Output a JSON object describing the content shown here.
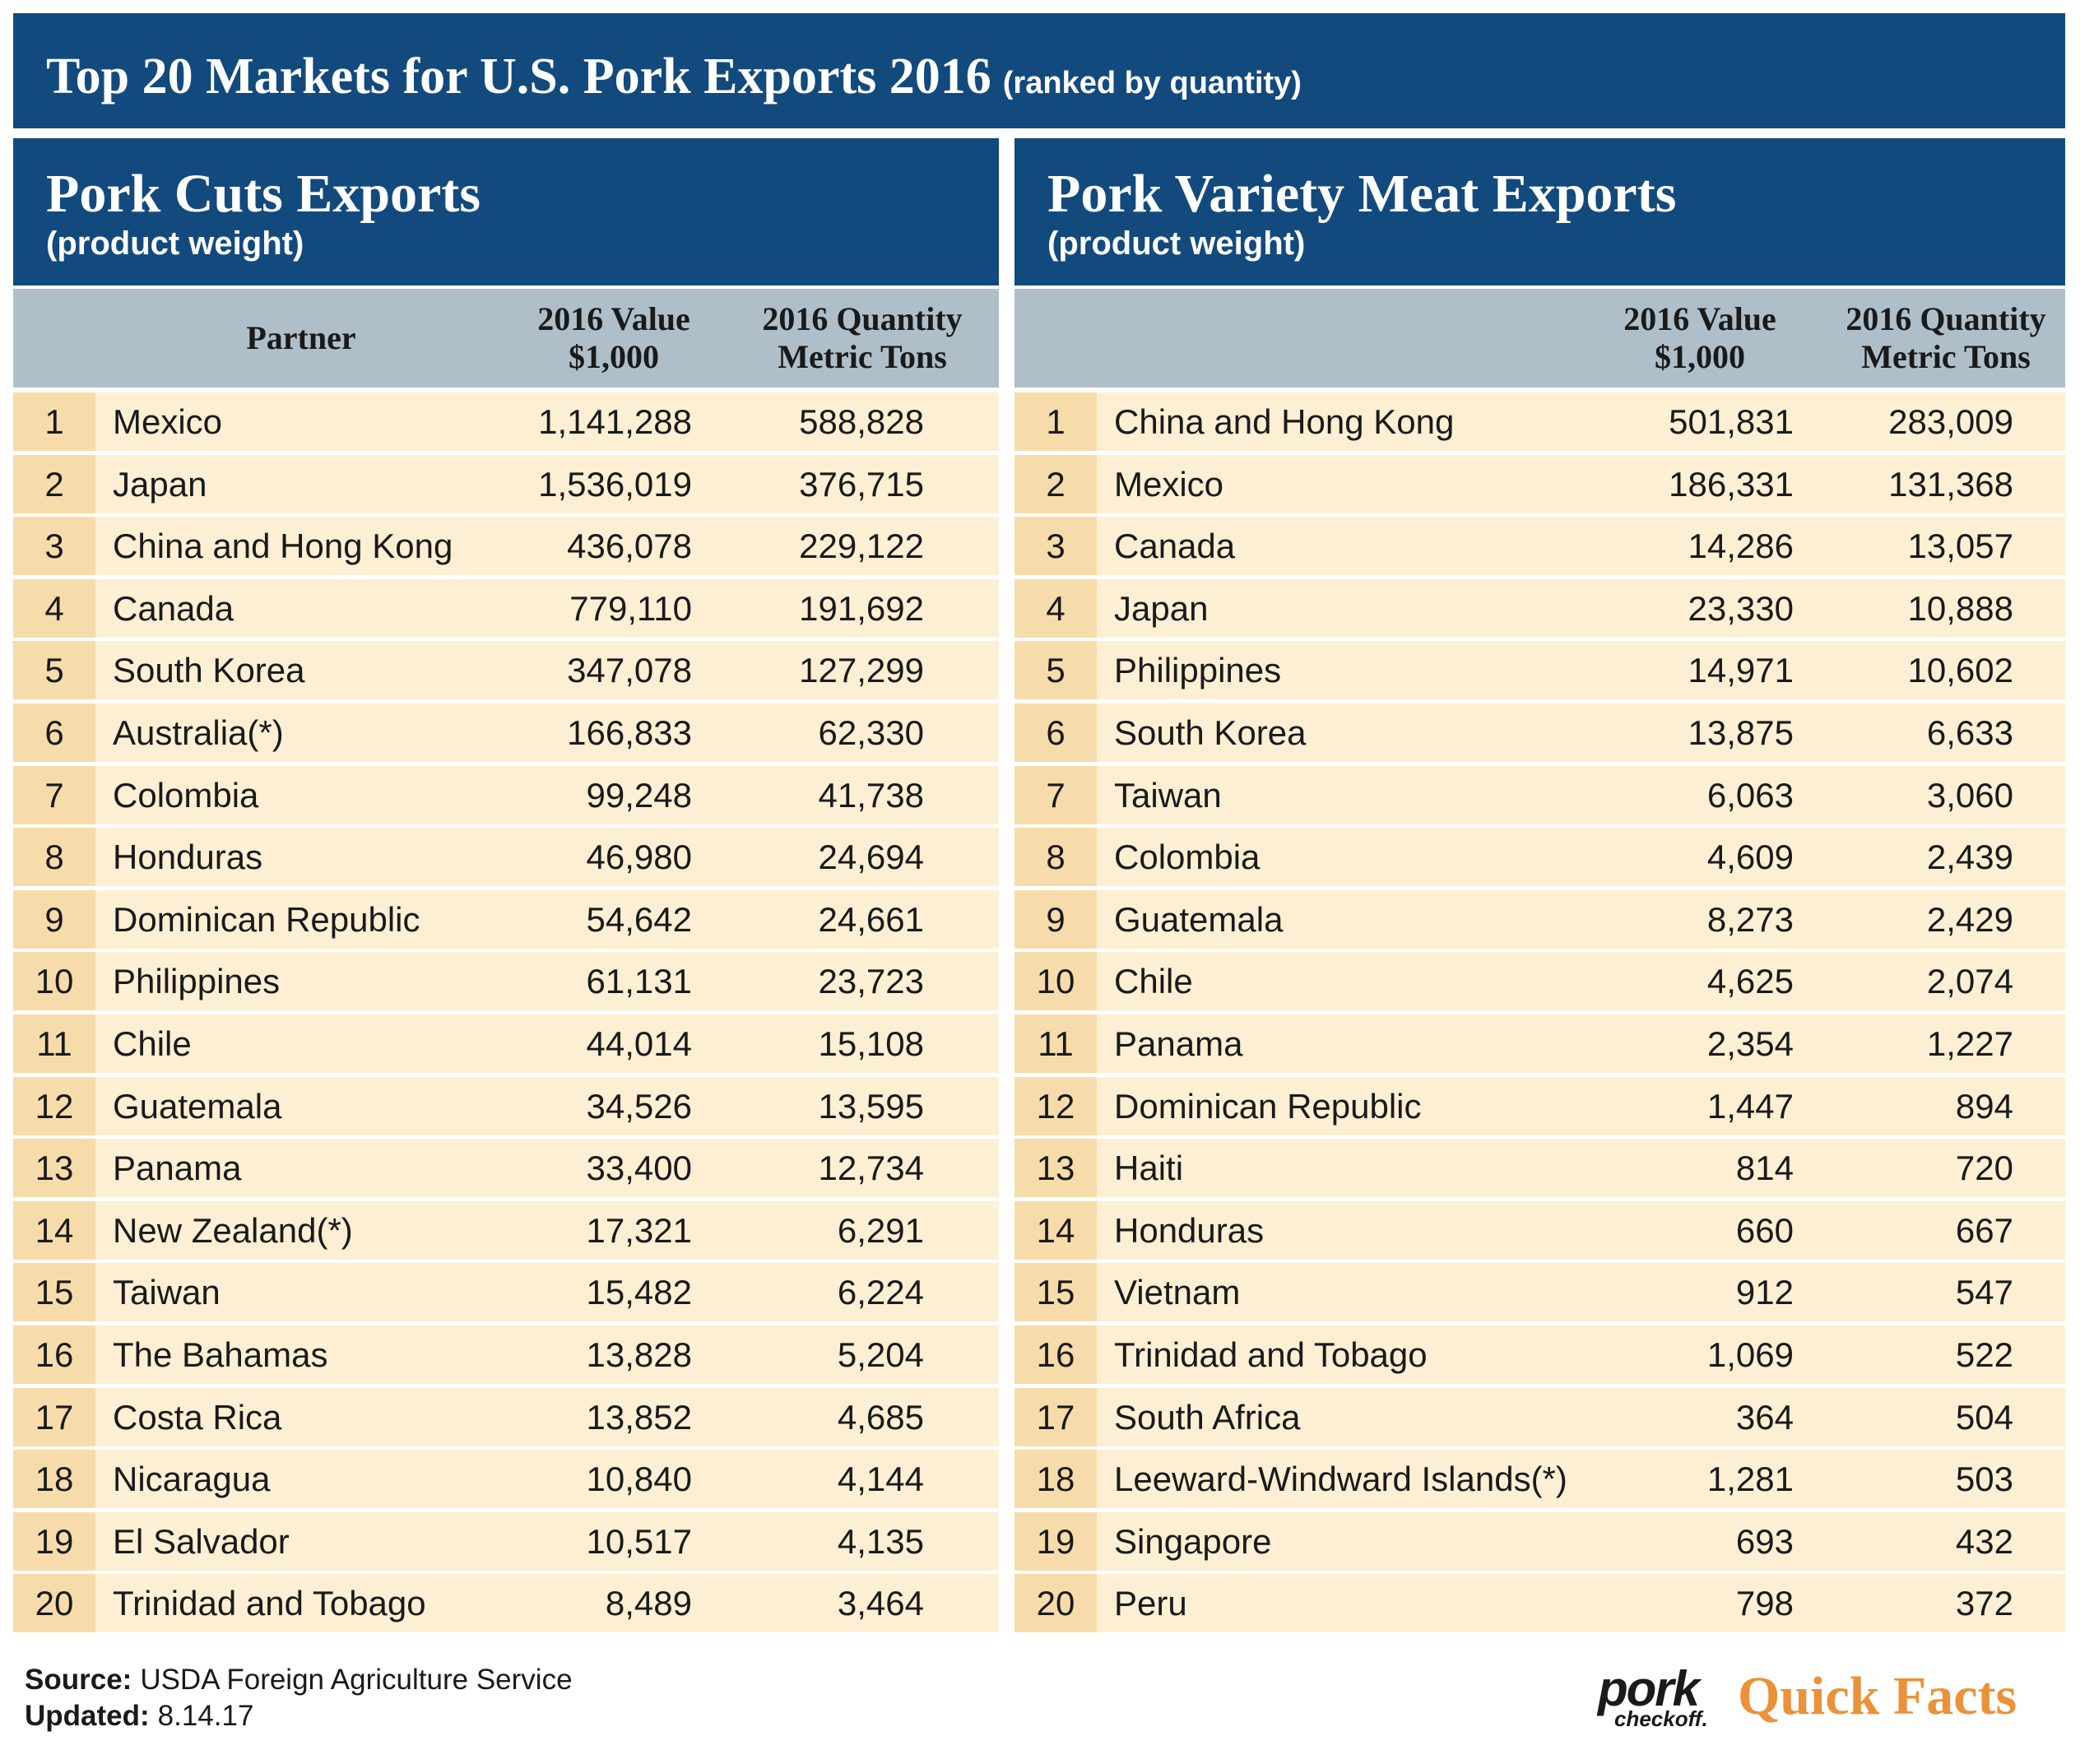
{
  "header": {
    "title": "Top 20 Markets for U.S. Pork Exports 2016",
    "subtitle": "(ranked by quantity)"
  },
  "tables": [
    {
      "title": "Pork Cuts Exports",
      "subtitle": "(product weight)",
      "columns": {
        "partner": "Partner",
        "value": [
          "2016 Value",
          "$1,000"
        ],
        "quantity": [
          "2016 Quantity",
          "Metric Tons"
        ]
      },
      "rows": [
        [
          "1",
          "Mexico",
          "1,141,288",
          "588,828"
        ],
        [
          "2",
          "Japan",
          "1,536,019",
          "376,715"
        ],
        [
          "3",
          "China and Hong Kong",
          "436,078",
          "229,122"
        ],
        [
          "4",
          "Canada",
          "779,110",
          "191,692"
        ],
        [
          "5",
          "South Korea",
          "347,078",
          "127,299"
        ],
        [
          "6",
          "Australia(*)",
          "166,833",
          "62,330"
        ],
        [
          "7",
          "Colombia",
          "99,248",
          "41,738"
        ],
        [
          "8",
          "Honduras",
          "46,980",
          "24,694"
        ],
        [
          "9",
          "Dominican Republic",
          "54,642",
          "24,661"
        ],
        [
          "10",
          "Philippines",
          "61,131",
          "23,723"
        ],
        [
          "11",
          "Chile",
          "44,014",
          "15,108"
        ],
        [
          "12",
          "Guatemala",
          "34,526",
          "13,595"
        ],
        [
          "13",
          "Panama",
          "33,400",
          "12,734"
        ],
        [
          "14",
          "New Zealand(*)",
          "17,321",
          "6,291"
        ],
        [
          "15",
          "Taiwan",
          "15,482",
          "6,224"
        ],
        [
          "16",
          "The Bahamas",
          "13,828",
          "5,204"
        ],
        [
          "17",
          "Costa Rica",
          "13,852",
          "4,685"
        ],
        [
          "18",
          "Nicaragua",
          "10,840",
          "4,144"
        ],
        [
          "19",
          "El Salvador",
          "10,517",
          "4,135"
        ],
        [
          "20",
          "Trinidad and Tobago",
          "8,489",
          "3,464"
        ]
      ]
    },
    {
      "title": "Pork Variety Meat Exports",
      "subtitle": "(product weight)",
      "columns": {
        "value": [
          "2016 Value",
          "$1,000"
        ],
        "quantity": [
          "2016 Quantity",
          "Metric Tons"
        ]
      },
      "rows": [
        [
          "1",
          "China and Hong Kong",
          "501,831",
          "283,009"
        ],
        [
          "2",
          "Mexico",
          "186,331",
          "131,368"
        ],
        [
          "3",
          "Canada",
          "14,286",
          "13,057"
        ],
        [
          "4",
          "Japan",
          "23,330",
          "10,888"
        ],
        [
          "5",
          "Philippines",
          "14,971",
          "10,602"
        ],
        [
          "6",
          "South Korea",
          "13,875",
          "6,633"
        ],
        [
          "7",
          "Taiwan",
          "6,063",
          "3,060"
        ],
        [
          "8",
          "Colombia",
          "4,609",
          "2,439"
        ],
        [
          "9",
          "Guatemala",
          "8,273",
          "2,429"
        ],
        [
          "10",
          "Chile",
          "4,625",
          "2,074"
        ],
        [
          "11",
          "Panama",
          "2,354",
          "1,227"
        ],
        [
          "12",
          "Dominican Republic",
          "1,447",
          "894"
        ],
        [
          "13",
          "Haiti",
          "814",
          "720"
        ],
        [
          "14",
          "Honduras",
          "660",
          "667"
        ],
        [
          "15",
          "Vietnam",
          "912",
          "547"
        ],
        [
          "16",
          "Trinidad and Tobago",
          "1,069",
          "522"
        ],
        [
          "17",
          "South Africa",
          "364",
          "504"
        ],
        [
          "18",
          "Leeward-Windward Islands(*)",
          "1,281",
          "503"
        ],
        [
          "19",
          "Singapore",
          "693",
          "432"
        ],
        [
          "20",
          "Peru",
          "798",
          "372"
        ]
      ]
    }
  ],
  "footer": {
    "source_label": "Source:",
    "source": "USDA Foreign Agriculture Service",
    "updated_label": "Updated:",
    "updated": "8.14.17"
  },
  "logo": {
    "brand": "pork",
    "sub": "checkoff.",
    "tagline": "Quick Facts"
  }
}
